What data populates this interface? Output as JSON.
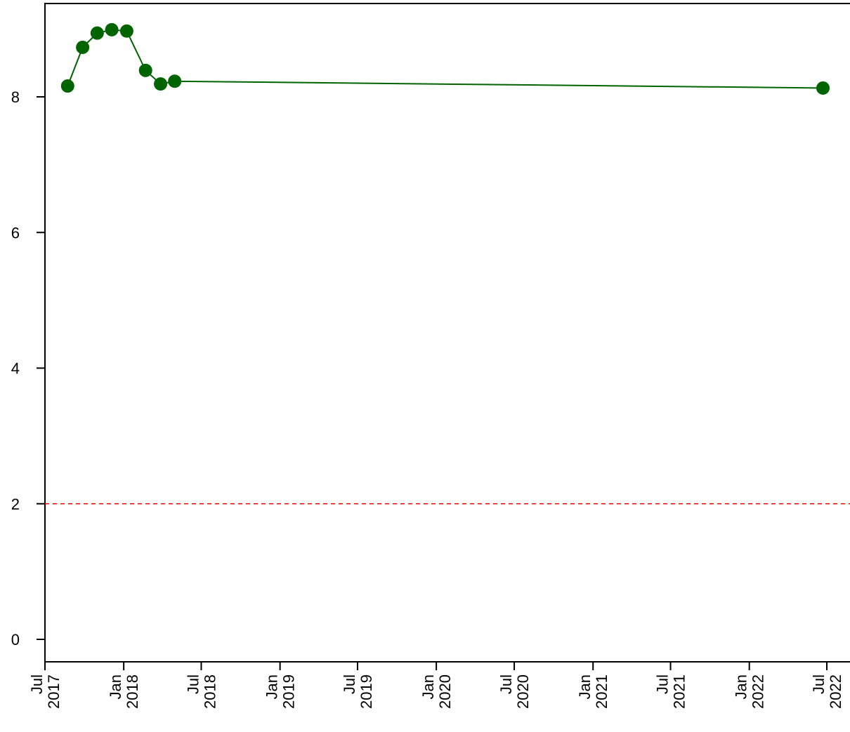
{
  "chart_data": {
    "type": "line",
    "x_type": "date",
    "xlim": [
      "2017-07-01",
      "2022-07-01"
    ],
    "ylim": [
      0,
      9
    ],
    "y_ticks": [
      0,
      2,
      4,
      6,
      8
    ],
    "y_tick_labels": [
      "0",
      "2",
      "4",
      "6",
      "8"
    ],
    "x_ticks": [
      {
        "date": "2017-07-01",
        "label": [
          "Jul",
          "2017"
        ]
      },
      {
        "date": "2018-01-01",
        "label": [
          "Jan",
          "2018"
        ]
      },
      {
        "date": "2018-07-01",
        "label": [
          "Jul",
          "2018"
        ]
      },
      {
        "date": "2019-01-01",
        "label": [
          "Jan",
          "2019"
        ]
      },
      {
        "date": "2019-07-01",
        "label": [
          "Jul",
          "2019"
        ]
      },
      {
        "date": "2020-01-01",
        "label": [
          "Jan",
          "2020"
        ]
      },
      {
        "date": "2020-07-01",
        "label": [
          "Jul",
          "2020"
        ]
      },
      {
        "date": "2021-01-01",
        "label": [
          "Jan",
          "2021"
        ]
      },
      {
        "date": "2021-07-01",
        "label": [
          "Jul",
          "2021"
        ]
      },
      {
        "date": "2022-01-01",
        "label": [
          "Jan",
          "2022"
        ]
      },
      {
        "date": "2022-07-01",
        "label": [
          "Jul",
          "2022"
        ]
      }
    ],
    "series": [
      {
        "color": "#006400",
        "points": [
          {
            "x": "2017-08-23",
            "y": 8.16
          },
          {
            "x": "2017-09-27",
            "y": 8.73
          },
          {
            "x": "2017-10-31",
            "y": 8.94
          },
          {
            "x": "2017-12-04",
            "y": 8.99
          },
          {
            "x": "2018-01-08",
            "y": 8.97
          },
          {
            "x": "2018-02-21",
            "y": 8.39
          },
          {
            "x": "2018-03-28",
            "y": 8.19
          },
          {
            "x": "2018-04-30",
            "y": 8.23
          },
          {
            "x": "2022-06-22",
            "y": 8.13
          }
        ]
      }
    ],
    "reference_line": {
      "y": 2,
      "color": "#ff0000",
      "style": "dashed"
    }
  }
}
